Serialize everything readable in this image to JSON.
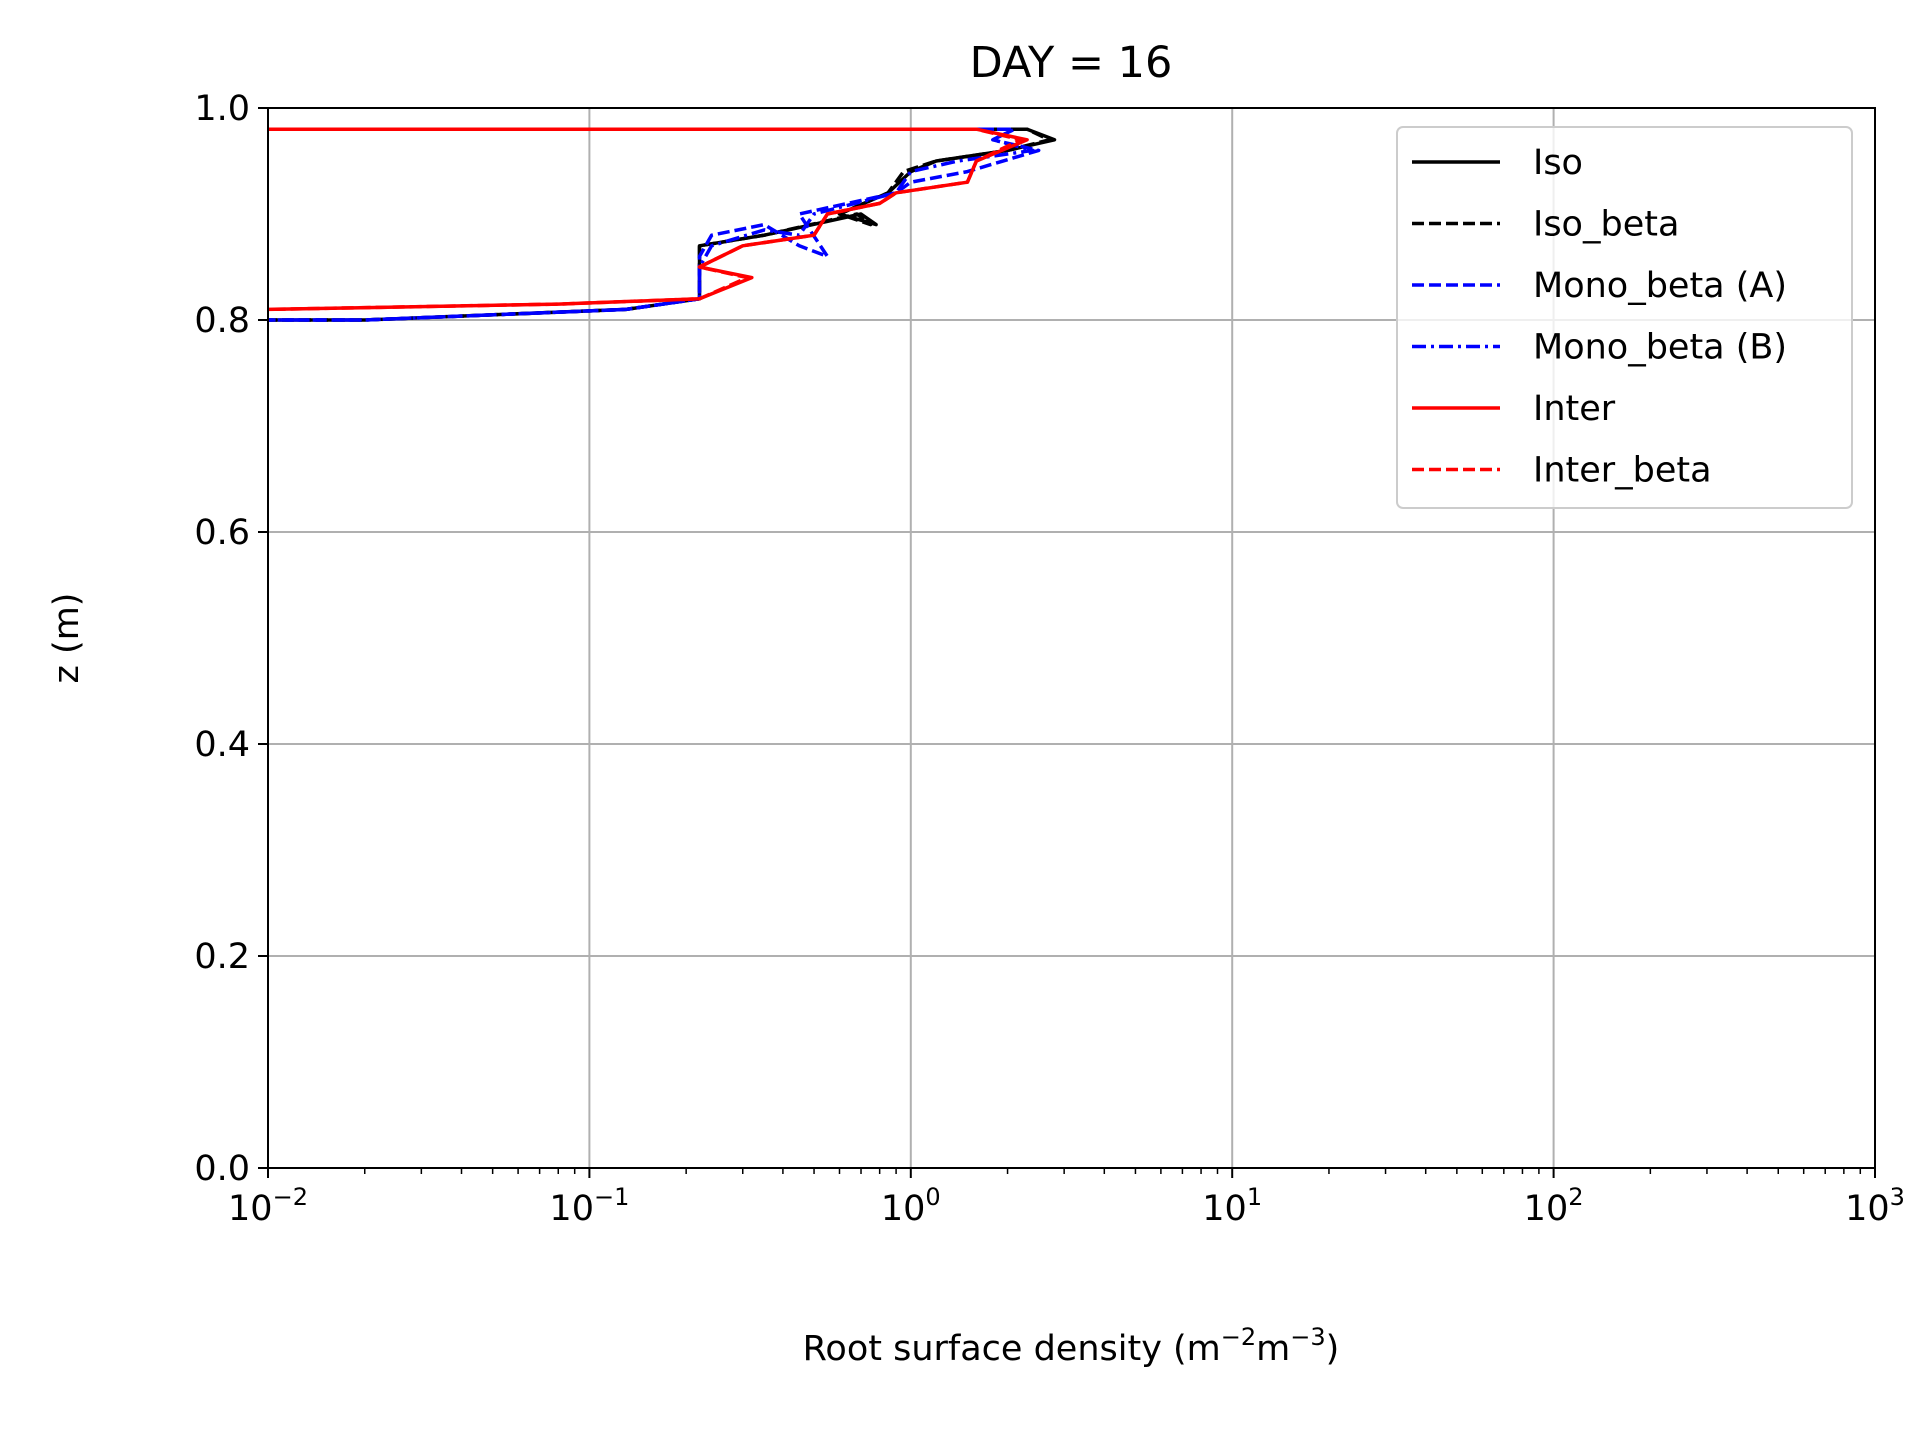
{
  "chart_data": {
    "type": "line",
    "title": "DAY = 16",
    "xlabel_main": "Root surface density (m",
    "xlabel_exp1": "−2",
    "xlabel_mid": "m",
    "xlabel_exp2": "−3",
    "xlabel_end": ")",
    "ylabel": "z (m)",
    "xscale": "log",
    "xlim": [
      0.01,
      1000
    ],
    "ylim": [
      0.0,
      1.0
    ],
    "grid": true,
    "legend_position": "top-right",
    "x_ticks": [
      {
        "value": 0.01,
        "base": "10",
        "exp": "−2"
      },
      {
        "value": 0.1,
        "base": "10",
        "exp": "−1"
      },
      {
        "value": 1,
        "base": "10",
        "exp": "0"
      },
      {
        "value": 10,
        "base": "10",
        "exp": "1"
      },
      {
        "value": 100,
        "base": "10",
        "exp": "2"
      },
      {
        "value": 1000,
        "base": "10",
        "exp": "3"
      }
    ],
    "y_ticks": [
      {
        "value": 0.0,
        "label": "0.0"
      },
      {
        "value": 0.2,
        "label": "0.2"
      },
      {
        "value": 0.4,
        "label": "0.4"
      },
      {
        "value": 0.6,
        "label": "0.6"
      },
      {
        "value": 0.8,
        "label": "0.8"
      },
      {
        "value": 1.0,
        "label": "1.0"
      }
    ],
    "series": [
      {
        "name": "Iso",
        "color": "#000000",
        "dash": "solid",
        "points": [
          [
            0.01,
            0.98
          ],
          [
            2.3,
            0.98
          ],
          [
            2.8,
            0.97
          ],
          [
            2.0,
            0.96
          ],
          [
            1.2,
            0.95
          ],
          [
            1.0,
            0.94
          ],
          [
            0.85,
            0.92
          ],
          [
            0.6,
            0.9
          ],
          [
            0.78,
            0.89
          ],
          [
            0.7,
            0.9
          ],
          [
            0.35,
            0.88
          ],
          [
            0.22,
            0.87
          ],
          [
            0.22,
            0.82
          ],
          [
            0.13,
            0.81
          ],
          [
            0.02,
            0.8
          ],
          [
            0.01,
            0.8
          ]
        ]
      },
      {
        "name": "Iso_beta",
        "color": "#000000",
        "dash": "dashed",
        "points": [
          [
            0.01,
            0.98
          ],
          [
            2.3,
            0.98
          ],
          [
            2.7,
            0.97
          ],
          [
            2.0,
            0.96
          ],
          [
            1.2,
            0.95
          ],
          [
            0.95,
            0.94
          ],
          [
            0.85,
            0.92
          ],
          [
            0.6,
            0.9
          ],
          [
            0.75,
            0.89
          ],
          [
            0.68,
            0.9
          ],
          [
            0.35,
            0.88
          ],
          [
            0.22,
            0.87
          ],
          [
            0.22,
            0.82
          ],
          [
            0.13,
            0.81
          ],
          [
            0.02,
            0.8
          ],
          [
            0.01,
            0.8
          ]
        ]
      },
      {
        "name": "Mono_beta (A)",
        "color": "#0000ff",
        "dash": "dashed",
        "points": [
          [
            0.01,
            0.98
          ],
          [
            2.1,
            0.98
          ],
          [
            1.8,
            0.97
          ],
          [
            2.5,
            0.96
          ],
          [
            1.5,
            0.94
          ],
          [
            1.0,
            0.93
          ],
          [
            0.9,
            0.92
          ],
          [
            0.45,
            0.9
          ],
          [
            0.55,
            0.86
          ],
          [
            0.45,
            0.87
          ],
          [
            0.35,
            0.89
          ],
          [
            0.24,
            0.88
          ],
          [
            0.22,
            0.86
          ],
          [
            0.22,
            0.82
          ],
          [
            0.13,
            0.81
          ],
          [
            0.02,
            0.8
          ],
          [
            0.01,
            0.8
          ]
        ]
      },
      {
        "name": "Mono_beta (B)",
        "color": "#0000ff",
        "dash": "dashdot",
        "points": [
          [
            0.01,
            0.98
          ],
          [
            2.1,
            0.98
          ],
          [
            1.8,
            0.97
          ],
          [
            2.4,
            0.96
          ],
          [
            1.4,
            0.95
          ],
          [
            1.0,
            0.94
          ],
          [
            0.9,
            0.92
          ],
          [
            0.5,
            0.9
          ],
          [
            0.45,
            0.88
          ],
          [
            0.35,
            0.885
          ],
          [
            0.24,
            0.87
          ],
          [
            0.22,
            0.85
          ],
          [
            0.22,
            0.82
          ],
          [
            0.13,
            0.81
          ],
          [
            0.02,
            0.8
          ],
          [
            0.01,
            0.8
          ]
        ]
      },
      {
        "name": "Inter",
        "color": "#ff0000",
        "dash": "solid",
        "points": [
          [
            0.01,
            0.98
          ],
          [
            1.6,
            0.98
          ],
          [
            2.3,
            0.97
          ],
          [
            1.6,
            0.95
          ],
          [
            1.5,
            0.93
          ],
          [
            0.9,
            0.92
          ],
          [
            0.8,
            0.91
          ],
          [
            0.55,
            0.9
          ],
          [
            0.5,
            0.88
          ],
          [
            0.3,
            0.87
          ],
          [
            0.22,
            0.85
          ],
          [
            0.32,
            0.84
          ],
          [
            0.22,
            0.82
          ],
          [
            0.08,
            0.815
          ],
          [
            0.01,
            0.81
          ]
        ]
      },
      {
        "name": "Inter_beta",
        "color": "#ff0000",
        "dash": "dashed",
        "points": [
          [
            0.01,
            0.98
          ],
          [
            1.6,
            0.98
          ],
          [
            2.2,
            0.97
          ],
          [
            1.6,
            0.95
          ],
          [
            1.5,
            0.93
          ],
          [
            0.9,
            0.92
          ],
          [
            0.8,
            0.91
          ],
          [
            0.55,
            0.9
          ],
          [
            0.5,
            0.88
          ],
          [
            0.3,
            0.87
          ],
          [
            0.22,
            0.85
          ],
          [
            0.31,
            0.84
          ],
          [
            0.22,
            0.82
          ],
          [
            0.08,
            0.815
          ],
          [
            0.01,
            0.81
          ]
        ]
      }
    ]
  }
}
